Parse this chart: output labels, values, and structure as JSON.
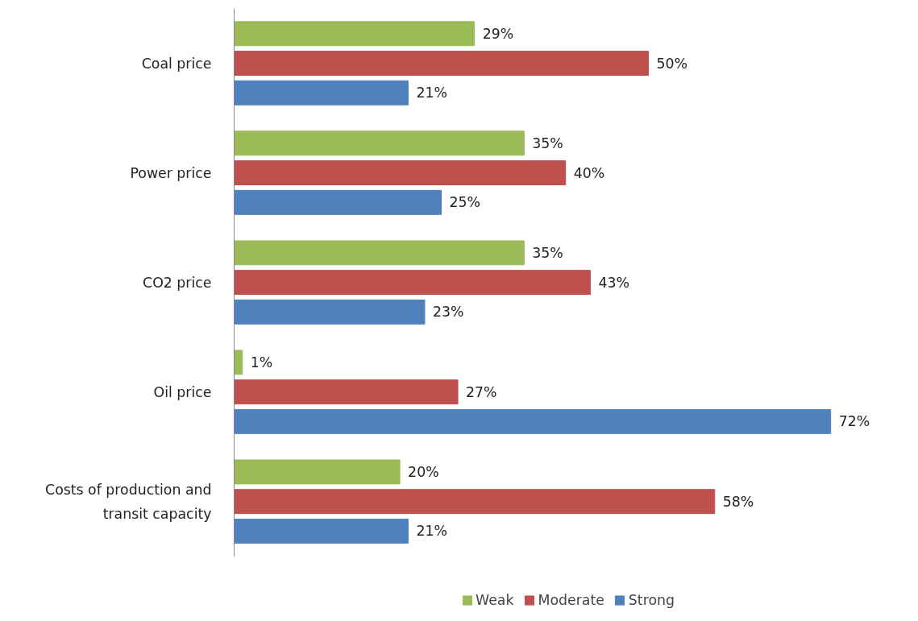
{
  "chart_data": {
    "type": "bar",
    "orientation": "horizontal",
    "categories": [
      "Coal price",
      "Power price",
      "CO2 price",
      "Oil price",
      "Costs of production and transit capacity"
    ],
    "series": [
      {
        "name": "Weak",
        "color": "#9bbb59",
        "values": [
          29,
          35,
          35,
          1,
          20
        ],
        "value_labels": [
          "29%",
          "35%",
          "35%",
          "1%",
          "20%"
        ]
      },
      {
        "name": "Moderate",
        "color": "#c0504d",
        "values": [
          50,
          40,
          43,
          27,
          58
        ],
        "value_labels": [
          "50%",
          "40%",
          "43%",
          "27%",
          "58%"
        ]
      },
      {
        "name": "Strong",
        "color": "#4f81bd",
        "values": [
          21,
          25,
          23,
          72,
          21
        ],
        "value_labels": [
          "21%",
          "25%",
          "23%",
          "72%",
          "21%"
        ]
      }
    ],
    "legend": "bottom",
    "tick_labels": "y"
  }
}
